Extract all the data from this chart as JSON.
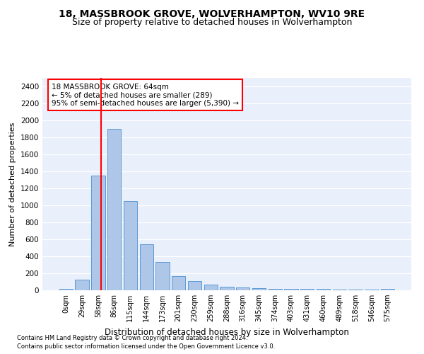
{
  "title1": "18, MASSBROOK GROVE, WOLVERHAMPTON, WV10 9RE",
  "title2": "Size of property relative to detached houses in Wolverhampton",
  "xlabel": "Distribution of detached houses by size in Wolverhampton",
  "ylabel": "Number of detached properties",
  "categories": [
    "0sqm",
    "29sqm",
    "58sqm",
    "86sqm",
    "115sqm",
    "144sqm",
    "173sqm",
    "201sqm",
    "230sqm",
    "259sqm",
    "288sqm",
    "316sqm",
    "345sqm",
    "374sqm",
    "403sqm",
    "431sqm",
    "460sqm",
    "489sqm",
    "518sqm",
    "546sqm",
    "575sqm"
  ],
  "values": [
    20,
    125,
    1350,
    1900,
    1050,
    545,
    335,
    170,
    110,
    65,
    40,
    30,
    25,
    20,
    15,
    15,
    15,
    5,
    5,
    5,
    20
  ],
  "bar_color": "#aec6e8",
  "bar_edge_color": "#5b9bd5",
  "red_line_index": 2.18,
  "annotation_title": "18 MASSBROOK GROVE: 64sqm",
  "annotation_line1": "← 5% of detached houses are smaller (289)",
  "annotation_line2": "95% of semi-detached houses are larger (5,390) →",
  "ylim": [
    0,
    2500
  ],
  "yticks": [
    0,
    200,
    400,
    600,
    800,
    1000,
    1200,
    1400,
    1600,
    1800,
    2000,
    2200,
    2400
  ],
  "footnote1": "Contains HM Land Registry data © Crown copyright and database right 2024.",
  "footnote2": "Contains public sector information licensed under the Open Government Licence v3.0.",
  "bg_color": "#eaf0fb",
  "grid_color": "#ffffff",
  "title1_fontsize": 10,
  "title2_fontsize": 9
}
